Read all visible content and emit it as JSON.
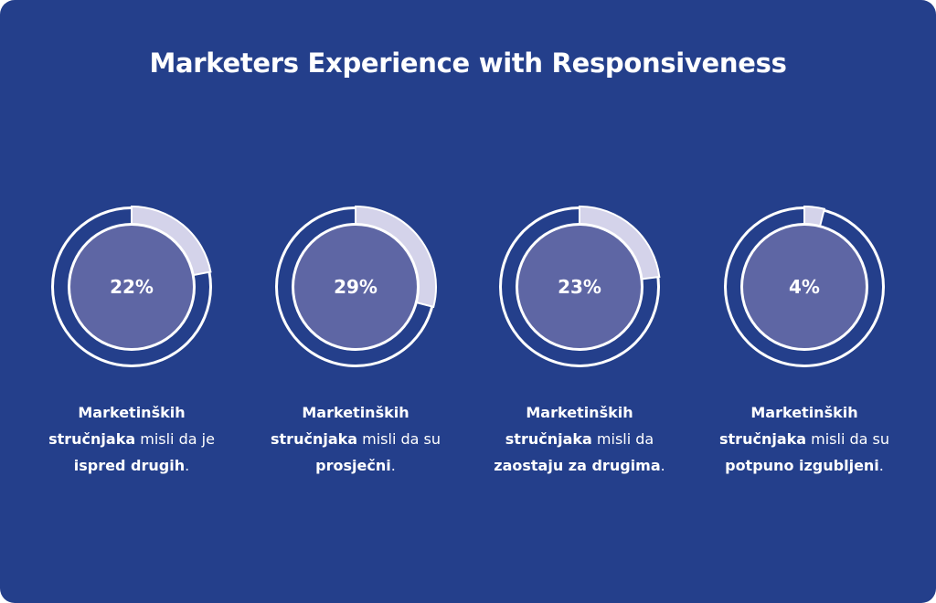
{
  "title": "Marketers Experience with Responsiveness",
  "colors": {
    "background": "#243f8b",
    "ring": "#ffffff",
    "slice": "#d4d3ea",
    "center": "#5e66a4",
    "text": "#ffffff"
  },
  "chart_data": {
    "type": "pie",
    "title": "Marketers Experience with Responsiveness",
    "series": [
      {
        "value": 22,
        "label": "22%",
        "caption": [
          {
            "text": "Marketinških",
            "bold": true
          },
          {
            "text": "stručnjaka",
            "bold": true
          },
          {
            "text": " misli da je",
            "bold": false
          },
          {
            "text": "ispred drugih",
            "bold": true
          },
          {
            "text": ".",
            "bold": false
          }
        ]
      },
      {
        "value": 29,
        "label": "29%",
        "caption": [
          {
            "text": "Marketinških",
            "bold": true
          },
          {
            "text": "stručnjaka",
            "bold": true
          },
          {
            "text": " misli da su",
            "bold": false
          },
          {
            "text": "prosječni",
            "bold": true
          },
          {
            "text": ".",
            "bold": false
          }
        ]
      },
      {
        "value": 23,
        "label": "23%",
        "caption": [
          {
            "text": "Marketinških",
            "bold": true
          },
          {
            "text": "stručnjaka",
            "bold": true
          },
          {
            "text": " misli da",
            "bold": false
          },
          {
            "text": "zaostaju za drugima",
            "bold": true
          },
          {
            "text": ".",
            "bold": false
          }
        ]
      },
      {
        "value": 4,
        "label": "4%",
        "caption": [
          {
            "text": "Marketinških",
            "bold": true
          },
          {
            "text": "stručnjaka",
            "bold": true
          },
          {
            "text": " misli da su",
            "bold": false
          },
          {
            "text": "potpuno izgubljeni",
            "bold": true
          },
          {
            "text": ".",
            "bold": false
          }
        ]
      }
    ]
  }
}
